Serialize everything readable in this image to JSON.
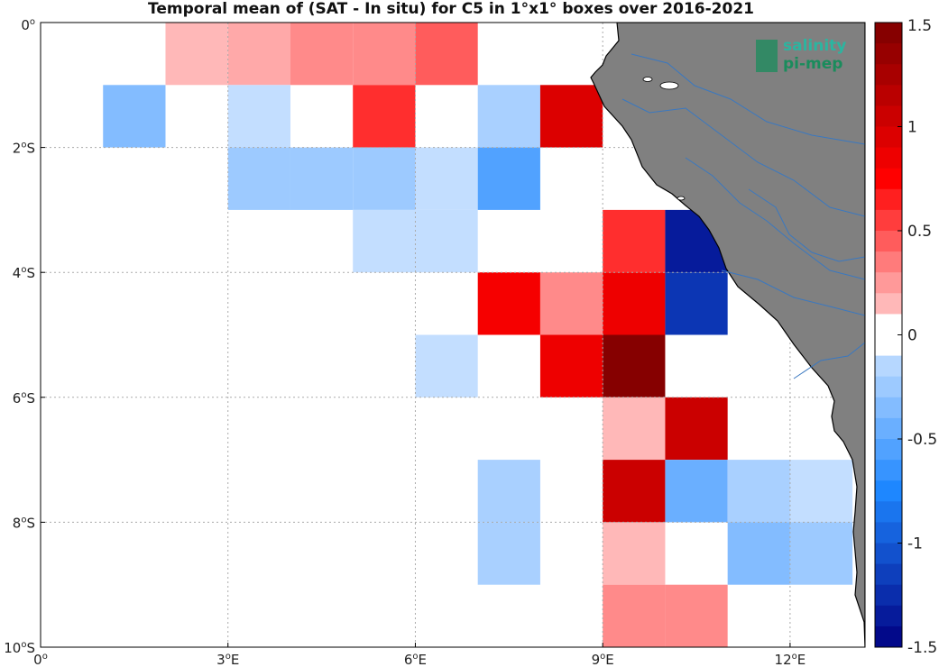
{
  "title": "Temporal mean of (SAT - In situ) for C5 in 1°x1° boxes over 2016-2021",
  "logo": {
    "line1": "salinity",
    "line2": "pi-mep"
  },
  "axes": {
    "lon_range": [
      0,
      13.2
    ],
    "lat_range": [
      -10,
      0
    ],
    "x_ticks": [
      {
        "value": 0,
        "label": "0",
        "sup": "o",
        "suffix": ""
      },
      {
        "value": 3,
        "label": "3",
        "sup": "o",
        "suffix": "E"
      },
      {
        "value": 6,
        "label": "6",
        "sup": "o",
        "suffix": "E"
      },
      {
        "value": 9,
        "label": "9",
        "sup": "o",
        "suffix": "E"
      },
      {
        "value": 12,
        "label": "12",
        "sup": "o",
        "suffix": "E"
      }
    ],
    "y_ticks": [
      {
        "value": 0,
        "label": "0",
        "sup": "o",
        "suffix": ""
      },
      {
        "value": -2,
        "label": "2",
        "sup": "o",
        "suffix": "S"
      },
      {
        "value": -4,
        "label": "4",
        "sup": "o",
        "suffix": "S"
      },
      {
        "value": -6,
        "label": "6",
        "sup": "o",
        "suffix": "S"
      },
      {
        "value": -8,
        "label": "8",
        "sup": "o",
        "suffix": "S"
      },
      {
        "value": -10,
        "label": "10",
        "sup": "o",
        "suffix": "S"
      }
    ],
    "grid": true
  },
  "colorbar": {
    "range": [
      -1.5,
      1.5
    ],
    "levels": 30,
    "tick_labels": [
      {
        "value": 1.5,
        "label": "1.5"
      },
      {
        "value": 1,
        "label": "1"
      },
      {
        "value": 0.5,
        "label": "0.5"
      },
      {
        "value": 0,
        "label": "0"
      },
      {
        "value": -0.5,
        "label": "-0.5"
      },
      {
        "value": -1,
        "label": "-1"
      },
      {
        "value": -1.5,
        "label": "-1.5"
      }
    ]
  },
  "colors": {
    "land": "#808080",
    "river": "#3a78c0",
    "coast": "#000000",
    "grid": "#aaaaaa"
  },
  "chart_data": {
    "type": "heatmap",
    "title": "Temporal mean of (SAT - In situ) for C5 in 1°x1° boxes over 2016-2021",
    "x_unit": "degrees E",
    "y_unit": "degrees latitude",
    "cells": [
      {
        "lon": 2,
        "lat": 0,
        "value": 0.15
      },
      {
        "lon": 3,
        "lat": 0,
        "value": 0.2
      },
      {
        "lon": 4,
        "lat": 0,
        "value": 0.3
      },
      {
        "lon": 5,
        "lat": 0,
        "value": 0.3
      },
      {
        "lon": 6,
        "lat": 0,
        "value": 0.45
      },
      {
        "lon": 1,
        "lat": -1,
        "value": -0.35
      },
      {
        "lon": 3,
        "lat": -1,
        "value": -0.1
      },
      {
        "lon": 5,
        "lat": -1,
        "value": 0.6
      },
      {
        "lon": 7,
        "lat": -1,
        "value": -0.2
      },
      {
        "lon": 8,
        "lat": -1,
        "value": 0.95
      },
      {
        "lon": 3,
        "lat": -2,
        "value": -0.25
      },
      {
        "lon": 4,
        "lat": -2,
        "value": -0.25
      },
      {
        "lon": 5,
        "lat": -2,
        "value": -0.25
      },
      {
        "lon": 6,
        "lat": -2,
        "value": -0.1
      },
      {
        "lon": 7,
        "lat": -2,
        "value": -0.55
      },
      {
        "lon": 5,
        "lat": -3,
        "value": -0.1
      },
      {
        "lon": 6,
        "lat": -3,
        "value": -0.1
      },
      {
        "lon": 9,
        "lat": -3,
        "value": 0.6
      },
      {
        "lon": 10,
        "lat": -3,
        "value": -1.35
      },
      {
        "lon": 7,
        "lat": -4,
        "value": 0.8
      },
      {
        "lon": 8,
        "lat": -4,
        "value": 0.3
      },
      {
        "lon": 9,
        "lat": -4,
        "value": 0.85
      },
      {
        "lon": 10,
        "lat": -4,
        "value": -1.2
      },
      {
        "lon": 6,
        "lat": -5,
        "value": -0.1
      },
      {
        "lon": 8,
        "lat": -5,
        "value": 0.85
      },
      {
        "lon": 9,
        "lat": -5,
        "value": 1.45
      },
      {
        "lon": 9,
        "lat": -6,
        "value": 0.15
      },
      {
        "lon": 10,
        "lat": -6,
        "value": 1.05
      },
      {
        "lon": 7,
        "lat": -7,
        "value": -0.2
      },
      {
        "lon": 9,
        "lat": -7,
        "value": 1.05
      },
      {
        "lon": 10,
        "lat": -7,
        "value": -0.45
      },
      {
        "lon": 11,
        "lat": -7,
        "value": -0.2
      },
      {
        "lon": 12,
        "lat": -7,
        "value": -0.1
      },
      {
        "lon": 7,
        "lat": -8,
        "value": -0.2
      },
      {
        "lon": 9,
        "lat": -8,
        "value": 0.15
      },
      {
        "lon": 11,
        "lat": -8,
        "value": -0.35
      },
      {
        "lon": 12,
        "lat": -8,
        "value": -0.25
      },
      {
        "lon": 9,
        "lat": -9,
        "value": 0.3
      },
      {
        "lon": 10,
        "lat": -9,
        "value": 0.3
      }
    ]
  }
}
